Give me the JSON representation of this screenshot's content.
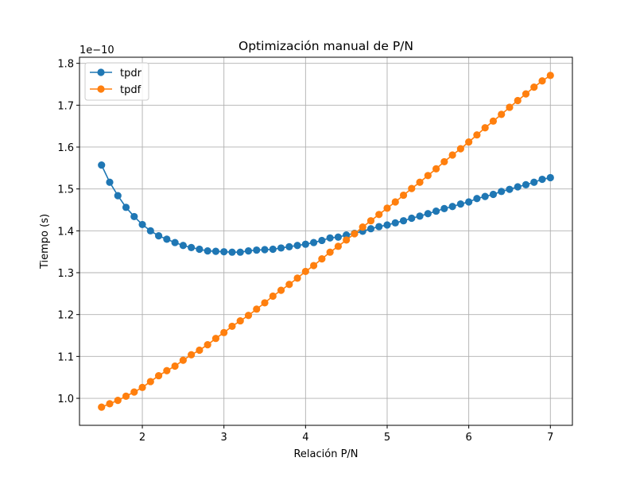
{
  "chart_data": {
    "type": "line",
    "title": "Optimización manual de P/N",
    "xlabel": "Relación P/N",
    "ylabel": "Tiempo (s)",
    "y_offset_label": "1e−10",
    "xlim": [
      1.23,
      7.27
    ],
    "ylim": [
      0.9355,
      1.8145
    ],
    "xticks": [
      "2",
      "3",
      "4",
      "5",
      "6",
      "7"
    ],
    "yticks": [
      "1.0",
      "1.1",
      "1.2",
      "1.3",
      "1.4",
      "1.5",
      "1.6",
      "1.7",
      "1.8"
    ],
    "grid": true,
    "legend_position": "top-left",
    "x": [
      1.5,
      1.6,
      1.7,
      1.8,
      1.9,
      2.0,
      2.1,
      2.2,
      2.3,
      2.4,
      2.5,
      2.6,
      2.7,
      2.8,
      2.9,
      3.0,
      3.1,
      3.2,
      3.3,
      3.4,
      3.5,
      3.6,
      3.7,
      3.8,
      3.9,
      4.0,
      4.1,
      4.2,
      4.3,
      4.4,
      4.5,
      4.6,
      4.7,
      4.8,
      4.9,
      5.0,
      5.1,
      5.2,
      5.3,
      5.4,
      5.5,
      5.6,
      5.7,
      5.8,
      5.9,
      6.0,
      6.1,
      6.2,
      6.3,
      6.4,
      6.5,
      6.6,
      6.7,
      6.8,
      6.9,
      7.0
    ],
    "series": [
      {
        "name": "tpdr",
        "color": "#1f77b4",
        "values": [
          1.557,
          1.516,
          1.484,
          1.456,
          1.434,
          1.415,
          1.4,
          1.388,
          1.38,
          1.372,
          1.365,
          1.36,
          1.356,
          1.352,
          1.351,
          1.35,
          1.349,
          1.349,
          1.352,
          1.354,
          1.355,
          1.356,
          1.359,
          1.362,
          1.365,
          1.368,
          1.372,
          1.377,
          1.383,
          1.385,
          1.39,
          1.394,
          1.399,
          1.405,
          1.41,
          1.414,
          1.419,
          1.424,
          1.43,
          1.435,
          1.441,
          1.447,
          1.453,
          1.458,
          1.464,
          1.469,
          1.477,
          1.482,
          1.487,
          1.494,
          1.499,
          1.505,
          1.51,
          1.516,
          1.523,
          1.527
        ]
      },
      {
        "name": "tpdf",
        "color": "#ff7f0e",
        "values": [
          0.979,
          0.987,
          0.995,
          1.005,
          1.015,
          1.026,
          1.04,
          1.054,
          1.066,
          1.077,
          1.091,
          1.104,
          1.115,
          1.128,
          1.143,
          1.157,
          1.172,
          1.185,
          1.198,
          1.213,
          1.228,
          1.244,
          1.258,
          1.272,
          1.287,
          1.303,
          1.317,
          1.333,
          1.349,
          1.363,
          1.378,
          1.393,
          1.409,
          1.424,
          1.439,
          1.454,
          1.469,
          1.485,
          1.501,
          1.516,
          1.532,
          1.548,
          1.565,
          1.581,
          1.596,
          1.612,
          1.629,
          1.646,
          1.662,
          1.678,
          1.695,
          1.711,
          1.727,
          1.743,
          1.758,
          1.771
        ]
      }
    ]
  }
}
